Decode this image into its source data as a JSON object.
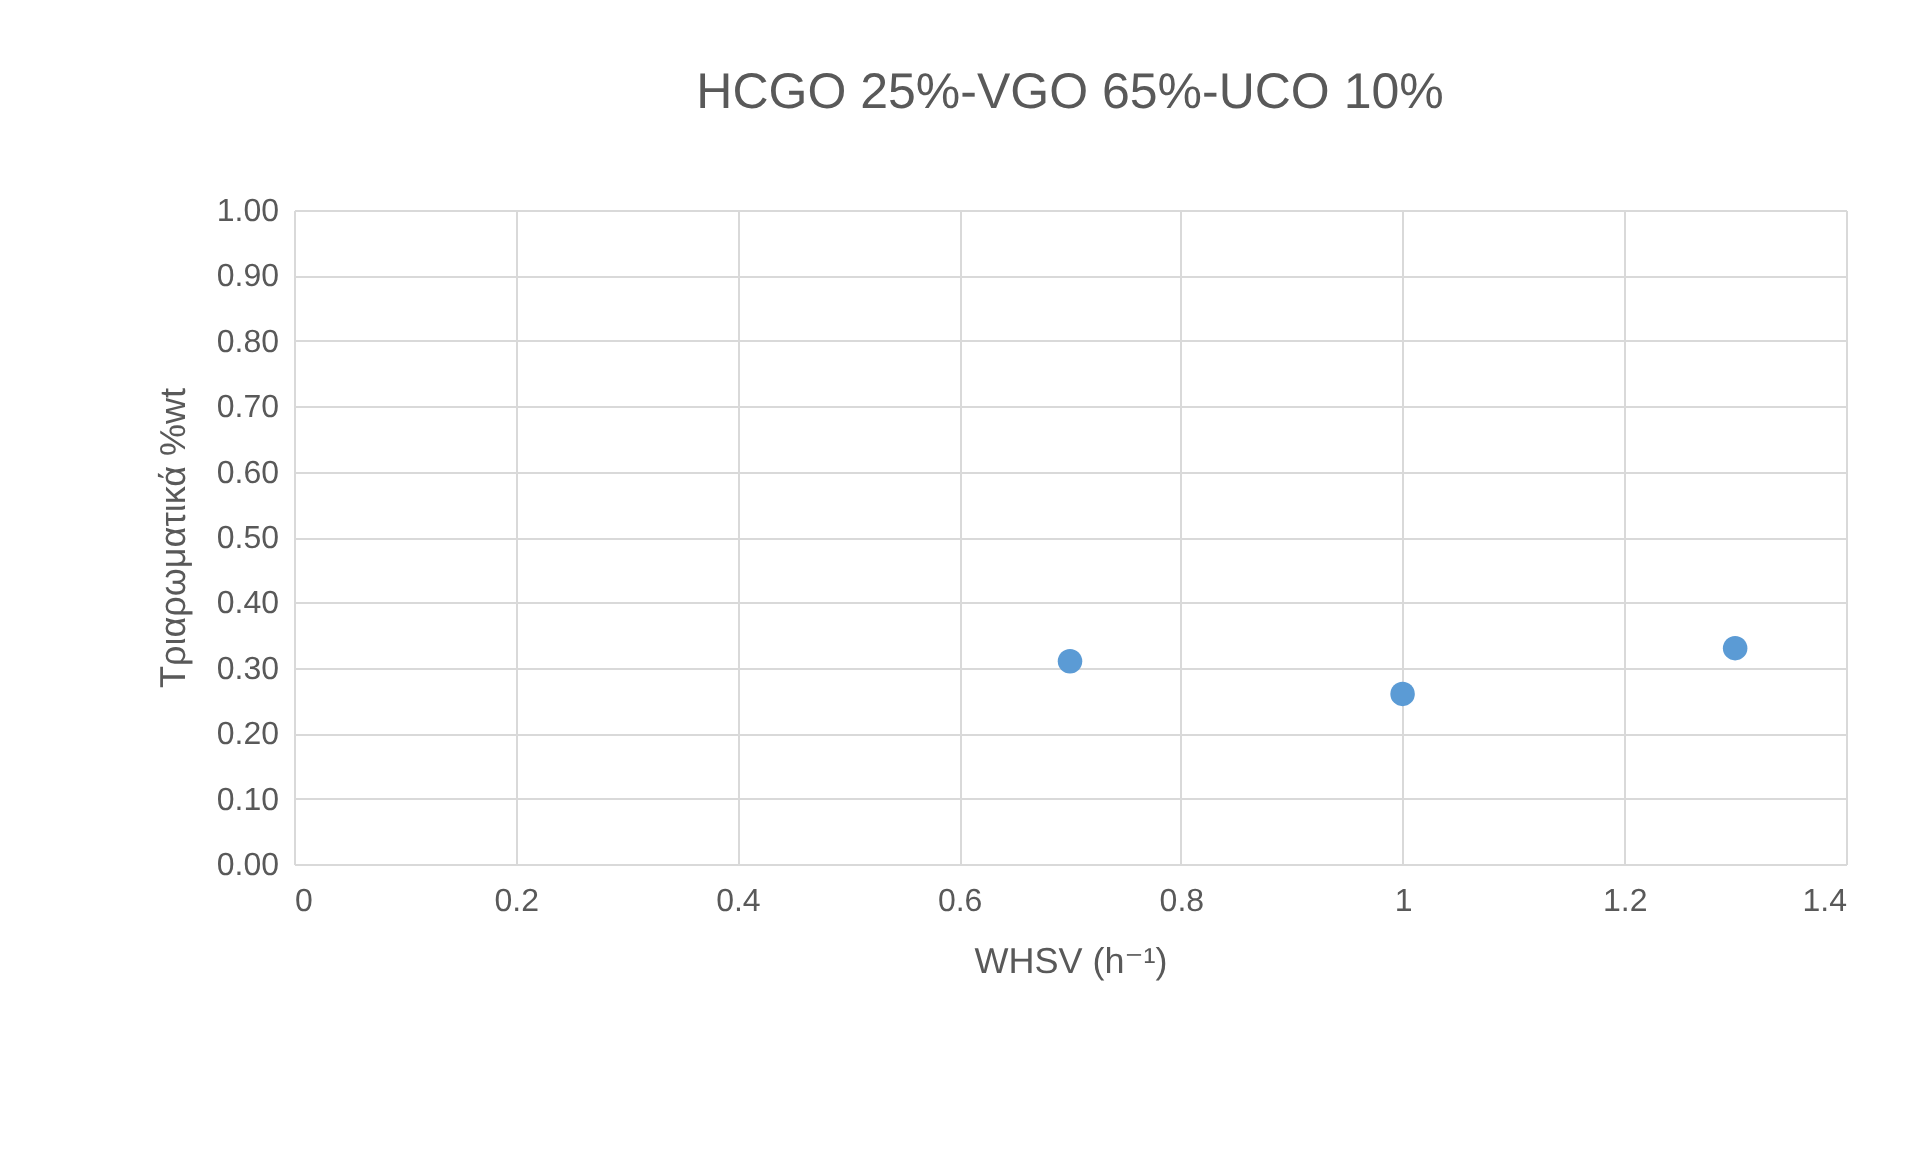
{
  "chart_data": {
    "type": "scatter",
    "title": "HCGO 25%-VGO 65%-UCO 10%",
    "xlabel": "WHSV (h⁻¹)",
    "ylabel": "Τριαρωματικά %wt",
    "x": [
      0.7,
      1,
      1.3
    ],
    "series": [
      {
        "color": "#5b9bd5",
        "values": [
          0.31,
          0.26,
          0.33
        ]
      }
    ],
    "xlim": [
      0,
      1.4
    ],
    "xticks": [
      0,
      0.2,
      0.4,
      0.6,
      0.8,
      1,
      1.2,
      1.4
    ],
    "ylim": [
      0,
      1
    ],
    "yticks": [
      {
        "value": 0,
        "label": "0.00"
      },
      {
        "value": 0.1,
        "label": "0.10"
      },
      {
        "value": 0.2,
        "label": "0.20"
      },
      {
        "value": 0.3,
        "label": "0.30"
      },
      {
        "value": 0.4,
        "label": "0.40"
      },
      {
        "value": 0.5,
        "label": "0.50"
      },
      {
        "value": 0.6,
        "label": "0.60"
      },
      {
        "value": 0.7,
        "label": "0.70"
      },
      {
        "value": 0.8,
        "label": "0.80"
      },
      {
        "value": 0.9,
        "label": "0.90"
      },
      {
        "value": 1,
        "label": "1.00"
      }
    ],
    "grid": true,
    "marker": "circle"
  }
}
